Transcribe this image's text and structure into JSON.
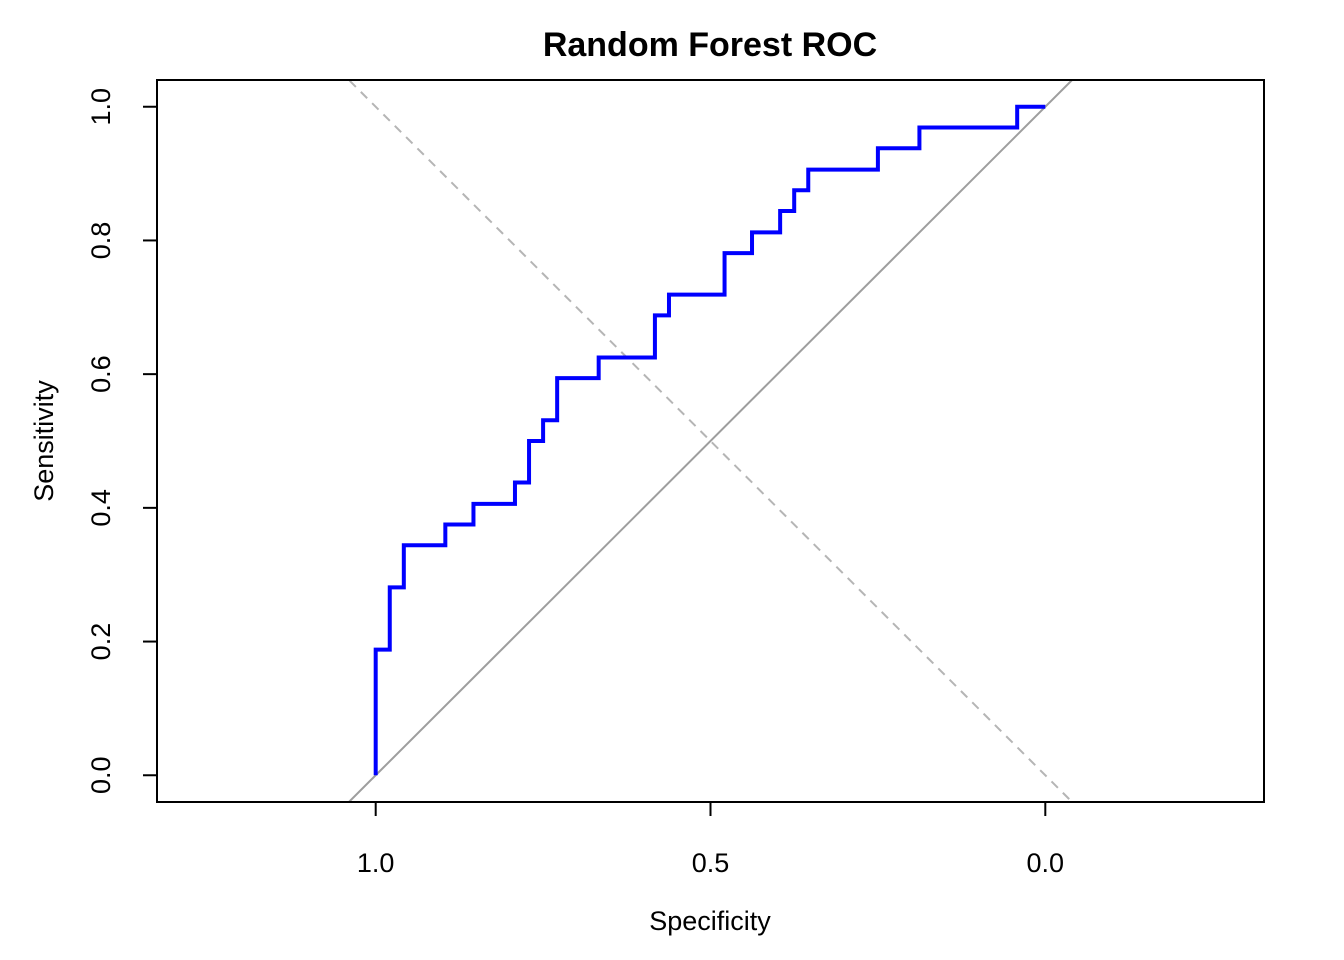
{
  "chart_data": {
    "type": "line",
    "title": "Random Forest ROC",
    "xlabel": "Specificity",
    "ylabel": "Sensitivity",
    "xlim": [
      1.3266,
      -0.3266
    ],
    "ylim": [
      -0.04,
      1.04
    ],
    "x_reversed": true,
    "grid": false,
    "x_ticks": [
      {
        "value": 1.0,
        "label": "1.0"
      },
      {
        "value": 0.5,
        "label": "0.5"
      },
      {
        "value": 0.0,
        "label": "0.0"
      }
    ],
    "y_ticks": [
      {
        "value": 0.0,
        "label": "0.0"
      },
      {
        "value": 0.2,
        "label": "0.2"
      },
      {
        "value": 0.4,
        "label": "0.4"
      },
      {
        "value": 0.6,
        "label": "0.6"
      },
      {
        "value": 0.8,
        "label": "0.8"
      },
      {
        "value": 1.0,
        "label": "1.0"
      }
    ],
    "colors": {
      "roc": "#0000ff",
      "diagonal": "#9e9e9e",
      "dashed": "#b5b5b5",
      "frame": "#000000"
    },
    "series": [
      {
        "style": "step",
        "x": [
          1.0,
          1.0,
          0.979,
          0.979,
          0.958,
          0.958,
          0.896,
          0.896,
          0.854,
          0.854,
          0.792,
          0.792,
          0.771,
          0.771,
          0.75,
          0.75,
          0.729,
          0.729,
          0.667,
          0.667,
          0.583,
          0.583,
          0.562,
          0.562,
          0.479,
          0.479,
          0.438,
          0.438,
          0.396,
          0.396,
          0.375,
          0.375,
          0.354,
          0.354,
          0.25,
          0.25,
          0.188,
          0.188,
          0.042,
          0.042,
          0.0
        ],
        "y": [
          0.0,
          0.188,
          0.188,
          0.281,
          0.281,
          0.344,
          0.344,
          0.375,
          0.375,
          0.406,
          0.406,
          0.438,
          0.438,
          0.5,
          0.5,
          0.531,
          0.531,
          0.594,
          0.594,
          0.625,
          0.625,
          0.688,
          0.688,
          0.719,
          0.719,
          0.781,
          0.781,
          0.812,
          0.812,
          0.844,
          0.844,
          0.875,
          0.875,
          0.906,
          0.906,
          0.938,
          0.938,
          0.969,
          0.969,
          1.0,
          1.0
        ]
      },
      {
        "style": "reference-diagonal",
        "x": [
          1.04,
          -0.04
        ],
        "y": [
          -0.04,
          1.04
        ]
      },
      {
        "style": "dashed",
        "x": [
          1.3266,
          -0.3266
        ],
        "y": [
          1.3266,
          -0.3266
        ]
      }
    ]
  }
}
